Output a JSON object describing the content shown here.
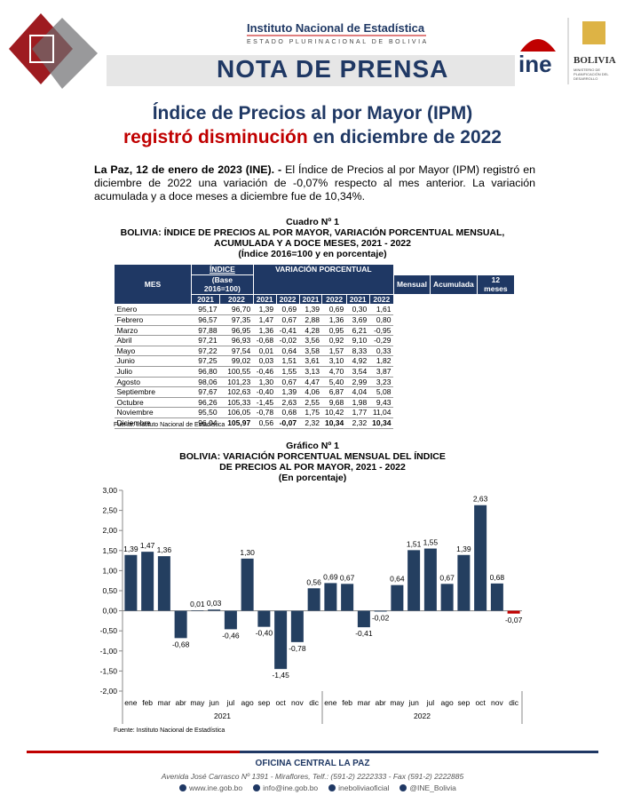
{
  "header": {
    "institute": "Instituto Nacional de Estadística",
    "state": "ESTADO PLURINACIONAL DE BOLIVIA",
    "banner": "NOTA DE PRENSA",
    "logo": "ine",
    "emblem": "BOLIVIA",
    "ministry": "MINISTERIO DE PLANIFICACIÓN DEL DESARROLLO"
  },
  "title": {
    "line1": "Índice de Precios al por Mayor (IPM)",
    "highlight": "registró disminución",
    "rest": " en diciembre de 2022"
  },
  "lead": {
    "bold": "La Paz, 12 de enero de 2023 (INE). -",
    "text": " El Índice de Precios al por Mayor (IPM) registró en diciembre de 2022 una variación de -0,07% respecto al mes anterior. La variación acumulada y a doce meses a diciembre fue de 10,34%."
  },
  "table": {
    "number": "Cuadro Nº 1",
    "title": "BOLIVIA: ÍNDICE DE PRECIOS AL POR MAYOR, VARIACIÓN PORCENTUAL MENSUAL, ACUMULADA Y A DOCE MESES, 2021 - 2022",
    "subtitle": "(Índice 2016=100 y en porcentaje)",
    "columns": {
      "mes": "MES",
      "indice": "ÍNDICE",
      "base": "(Base 2016=100)",
      "variacion": "VARIACIÓN PORCENTUAL",
      "groups": [
        "Mensual",
        "Acumulada",
        "12 meses"
      ],
      "years": [
        "2021",
        "2022"
      ]
    },
    "rows": [
      [
        "Enero",
        "95,17",
        "96,70",
        "1,39",
        "0,69",
        "1,39",
        "0,69",
        "0,30",
        "1,61"
      ],
      [
        "Febrero",
        "96,57",
        "97,35",
        "1,47",
        "0,67",
        "2,88",
        "1,36",
        "3,69",
        "0,80"
      ],
      [
        "Marzo",
        "97,88",
        "96,95",
        "1,36",
        "-0,41",
        "4,28",
        "0,95",
        "6,21",
        "-0,95"
      ],
      [
        "Abril",
        "97,21",
        "96,93",
        "-0,68",
        "-0,02",
        "3,56",
        "0,92",
        "9,10",
        "-0,29"
      ],
      [
        "Mayo",
        "97,22",
        "97,54",
        "0,01",
        "0,64",
        "3,58",
        "1,57",
        "8,33",
        "0,33"
      ],
      [
        "Junio",
        "97,25",
        "99,02",
        "0,03",
        "1,51",
        "3,61",
        "3,10",
        "4,92",
        "1,82"
      ],
      [
        "Julio",
        "96,80",
        "100,55",
        "-0,46",
        "1,55",
        "3,13",
        "4,70",
        "3,54",
        "3,87"
      ],
      [
        "Agosto",
        "98,06",
        "101,23",
        "1,30",
        "0,67",
        "4,47",
        "5,40",
        "2,99",
        "3,23"
      ],
      [
        "Septiembre",
        "97,67",
        "102,63",
        "-0,40",
        "1,39",
        "4,06",
        "6,87",
        "4,04",
        "5,08"
      ],
      [
        "Octubre",
        "96,26",
        "105,33",
        "-1,45",
        "2,63",
        "2,55",
        "9,68",
        "1,98",
        "9,43"
      ],
      [
        "Noviembre",
        "95,50",
        "106,05",
        "-0,78",
        "0,68",
        "1,75",
        "10,42",
        "1,77",
        "11,04"
      ],
      [
        "Diciembre",
        "96,04",
        "105,97",
        "0,56",
        "-0,07",
        "2,32",
        "10,34",
        "2,32",
        "10,34"
      ]
    ],
    "source": "Fuente: Instituto Nacional de Estadística"
  },
  "chart_data": {
    "type": "bar",
    "number": "Gráfico Nº 1",
    "title": "BOLIVIA: VARIACIÓN PORCENTUAL MENSUAL DEL ÍNDICE DE PRECIOS AL POR MAYOR, 2021 - 2022",
    "subtitle": "(En porcentaje)",
    "categories": [
      "ene",
      "feb",
      "mar",
      "abr",
      "may",
      "jun",
      "jul",
      "ago",
      "sep",
      "oct",
      "nov",
      "dic",
      "ene",
      "feb",
      "mar",
      "abr",
      "may",
      "jun",
      "jul",
      "ago",
      "sep",
      "oct",
      "nov",
      "dic"
    ],
    "groups": [
      "2021",
      "2022"
    ],
    "values": [
      1.39,
      1.47,
      1.36,
      -0.68,
      0.01,
      0.03,
      -0.46,
      1.3,
      -0.4,
      -1.45,
      -0.78,
      0.56,
      0.69,
      0.67,
      -0.41,
      -0.02,
      0.64,
      1.51,
      1.55,
      0.67,
      1.39,
      2.63,
      0.68,
      -0.07
    ],
    "value_labels": [
      "1,39",
      "1,47",
      "1,36",
      "-0,68",
      "0,01",
      "0,03",
      "-0,46",
      "1,30",
      "-0,40",
      "-1,45",
      "-0,78",
      "0,56",
      "0,69",
      "0,67",
      "-0,41",
      "-0,02",
      "0,64",
      "1,51",
      "1,55",
      "0,67",
      "1,39",
      "2,63",
      "0,68",
      "-0,07"
    ],
    "colors": [
      "#243f60",
      "#243f60",
      "#243f60",
      "#243f60",
      "#243f60",
      "#243f60",
      "#243f60",
      "#243f60",
      "#243f60",
      "#243f60",
      "#243f60",
      "#243f60",
      "#243f60",
      "#243f60",
      "#243f60",
      "#243f60",
      "#243f60",
      "#243f60",
      "#243f60",
      "#243f60",
      "#243f60",
      "#243f60",
      "#243f60",
      "#c00000"
    ],
    "ylim": [
      -2,
      3
    ],
    "yticks": [
      {
        "value": -2,
        "label": "-2,00"
      },
      {
        "value": -1.5,
        "label": "-1,50"
      },
      {
        "value": -1,
        "label": "-1,00"
      },
      {
        "value": -0.5,
        "label": "-0,50"
      },
      {
        "value": 0,
        "label": "0,00"
      },
      {
        "value": 0.5,
        "label": "0,50"
      },
      {
        "value": 1,
        "label": "1,00"
      },
      {
        "value": 1.5,
        "label": "1,50"
      },
      {
        "value": 2,
        "label": "2,00"
      },
      {
        "value": 2.5,
        "label": "2,50"
      },
      {
        "value": 3,
        "label": "3,00"
      }
    ],
    "source": "Fuente: Instituto Nacional de Estadística"
  },
  "footer": {
    "office": "OFICINA CENTRAL LA PAZ",
    "address": "Avenida José Carrasco Nº 1391 - Miraflores, Telf.: (591-2) 2222333 - Fax (591-2) 2222885",
    "contacts": [
      "www.ine.gob.bo",
      "info@ine.gob.bo",
      "ineboliviaoficial",
      "@INE_Bolivia"
    ]
  }
}
